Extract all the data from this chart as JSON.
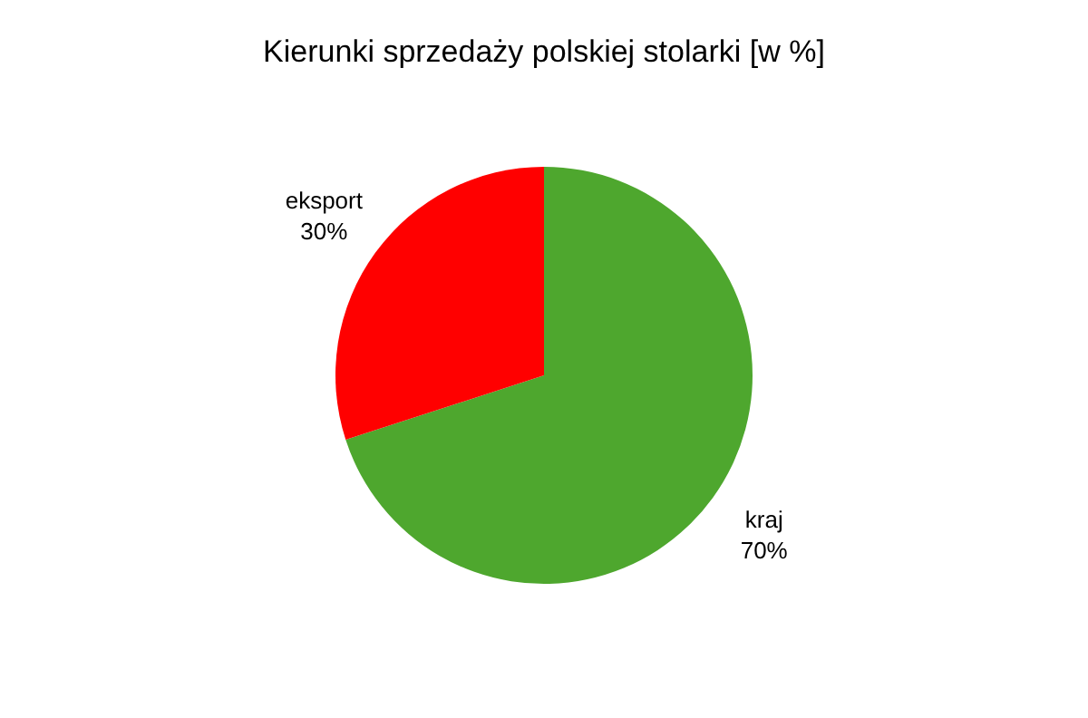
{
  "chart_data": {
    "type": "pie",
    "title": "Kierunki sprzedaży polskiej stolarki [w %]",
    "categories": [
      "kraj",
      "eksport"
    ],
    "values": [
      70,
      30
    ],
    "colors": [
      "#4ea72e",
      "#ff0000"
    ],
    "value_labels": [
      "70%",
      "30%"
    ],
    "legend": false
  }
}
